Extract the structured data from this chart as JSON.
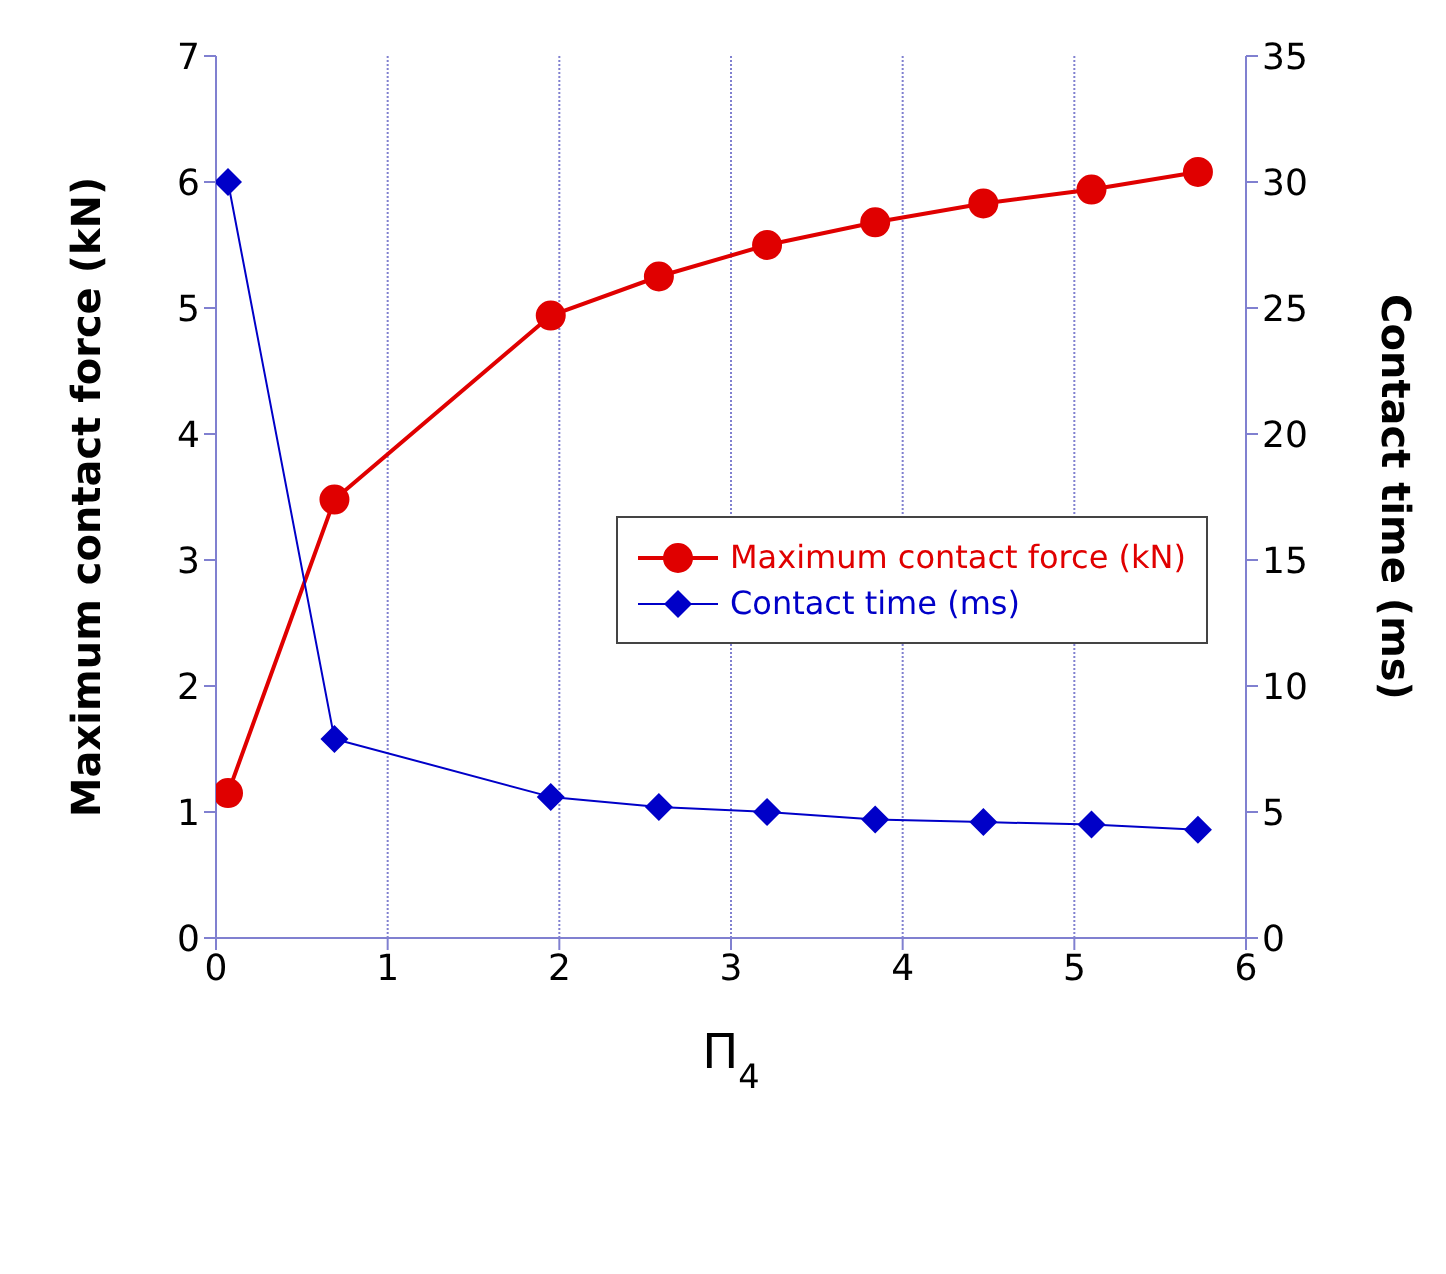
{
  "chart_data": {
    "type": "line",
    "xlabel": "Π$_{4}$",
    "ylabel": "Maximum contact force (kN)",
    "y2label": "Contact time (ms)",
    "xlim": [
      0,
      6
    ],
    "xticks": [
      0,
      1,
      2,
      3,
      4,
      5,
      6
    ],
    "ylim": [
      0,
      7
    ],
    "yticks": [
      0,
      1,
      2,
      3,
      4,
      5,
      6,
      7
    ],
    "y2lim": [
      0,
      35
    ],
    "y2ticks": [
      0,
      5,
      10,
      15,
      20,
      25,
      30,
      35
    ],
    "grid": "x",
    "legend": "right",
    "series": [
      {
        "name": "Maximum contact force (kN)",
        "color": "#e00000",
        "marker": "circle",
        "x": [
          0.07,
          0.69,
          1.95,
          2.58,
          3.21,
          3.84,
          4.47,
          5.1,
          5.72
        ],
        "values": [
          1.15,
          3.48,
          4.94,
          5.25,
          5.5,
          5.68,
          5.83,
          5.94,
          6.08
        ]
      },
      {
        "name": "Contact time (ms)",
        "color": "#0000c8",
        "marker": "diamond",
        "axis": "y2",
        "x": [
          0.07,
          0.69,
          1.95,
          2.58,
          3.21,
          3.84,
          4.47,
          5.1,
          5.72
        ],
        "values": [
          30,
          7.9,
          5.6,
          5.2,
          5.0,
          4.7,
          4.6,
          4.5,
          4.3
        ]
      }
    ]
  }
}
